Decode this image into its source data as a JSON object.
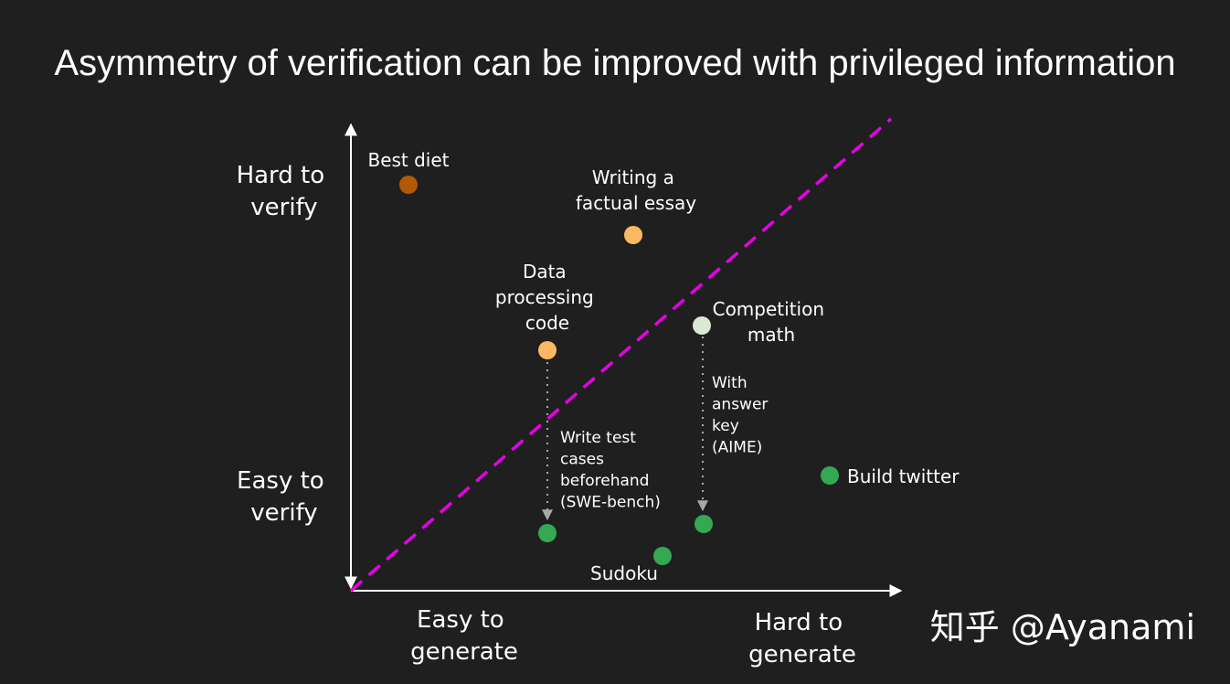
{
  "title": "Asymmetry of verification can be improved with privileged information",
  "axes": {
    "y_top": [
      "Hard to",
      "verify"
    ],
    "y_bottom": [
      "Easy to",
      "verify"
    ],
    "x_left": [
      "Easy to",
      "generate"
    ],
    "x_right": [
      "Hard to",
      "generate"
    ]
  },
  "colors": {
    "axis": "#ffffff",
    "diagonal": "#e600e6",
    "arrow": "#a9a9a9",
    "dark_orange": "#b35806",
    "light_orange": "#fdb863",
    "pale_green": "#d9ead3",
    "green": "#34a853"
  },
  "points": [
    {
      "id": "best-diet",
      "lines": [
        "Best diet"
      ],
      "color": "dark_orange"
    },
    {
      "id": "factual-essay",
      "lines": [
        "Writing a",
        "factual essay"
      ],
      "color": "light_orange"
    },
    {
      "id": "data-processing",
      "lines": [
        "Data",
        "processing",
        "code"
      ],
      "color": "light_orange"
    },
    {
      "id": "competition-math",
      "lines": [
        "Competition",
        "math"
      ],
      "color": "pale_green"
    },
    {
      "id": "build-twitter",
      "lines": [
        "Build twitter"
      ],
      "color": "green"
    },
    {
      "id": "sudoku",
      "lines": [
        "Sudoku"
      ],
      "color": "green"
    },
    {
      "id": "data-processing-tested",
      "lines": [],
      "color": "green"
    },
    {
      "id": "competition-math-keyed",
      "lines": [],
      "color": "green"
    }
  ],
  "transitions": [
    {
      "id": "test-cases",
      "from": "data-processing",
      "to": "data-processing-tested",
      "lines": [
        "Write test",
        "cases",
        "beforehand",
        "(SWE-bench)"
      ]
    },
    {
      "id": "answer-key",
      "from": "competition-math",
      "to": "competition-math-keyed",
      "lines": [
        "With",
        "answer",
        "key",
        "(AIME)"
      ]
    }
  ],
  "watermark": "知乎 @Ayanami"
}
